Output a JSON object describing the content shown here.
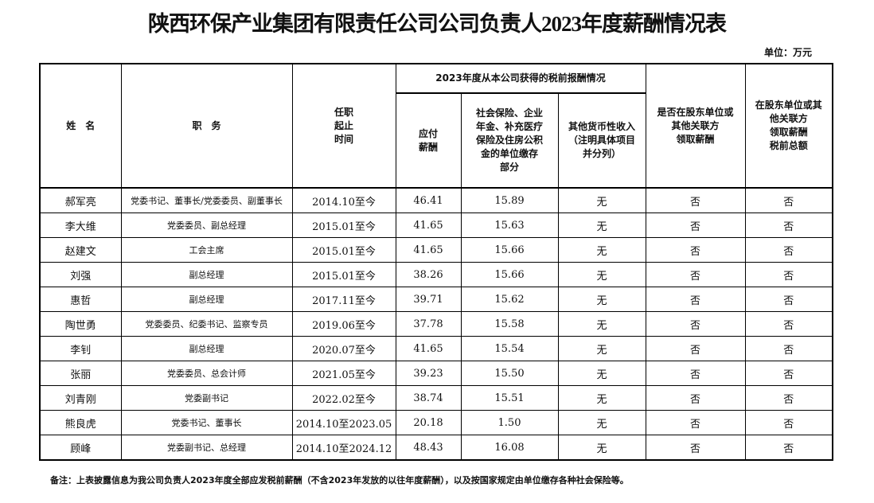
{
  "title": "陕西环保产业集团有限责任公司公司负责人2023年度薪酬情况表",
  "unit": "单位：万元",
  "headers": {
    "name": "姓　名",
    "position": "职　务",
    "term": "任职\n起止\n时间",
    "group": "2023年度从本公司获得的税前报酬情况",
    "salary": "应付\n薪酬",
    "insurance": "社会保险、企业\n年金、补充医疗\n保险及住房公积\n金的单位缴存\n部分",
    "other": "其他货币性收入\n（注明具体项目\n并分列）",
    "related": "是否在股东单位或\n其他关联方\n领取薪酬",
    "related_total": "在股东单位或其\n他关联方\n领取薪酬\n税前总额"
  },
  "rows": [
    {
      "name": "郝军亮",
      "position": "党委书记、董事长/党委委员、副董事长",
      "term": "2014.10至今",
      "salary": "46.41",
      "insurance": "15.89",
      "other": "无",
      "related": "否",
      "related_total": "否"
    },
    {
      "name": "李大维",
      "position": "党委委员、副总经理",
      "term": "2015.01至今",
      "salary": "41.65",
      "insurance": "15.63",
      "other": "无",
      "related": "否",
      "related_total": "否"
    },
    {
      "name": "赵建文",
      "position": "工会主席",
      "term": "2015.01至今",
      "salary": "41.65",
      "insurance": "15.66",
      "other": "无",
      "related": "否",
      "related_total": "否"
    },
    {
      "name": "刘强",
      "position": "副总经理",
      "term": "2015.01至今",
      "salary": "38.26",
      "insurance": "15.66",
      "other": "无",
      "related": "否",
      "related_total": "否"
    },
    {
      "name": "惠哲",
      "position": "副总经理",
      "term": "2017.11至今",
      "salary": "39.71",
      "insurance": "15.62",
      "other": "无",
      "related": "否",
      "related_total": "否"
    },
    {
      "name": "陶世勇",
      "position": "党委委员、纪委书记、监察专员",
      "term": "2019.06至今",
      "salary": "37.78",
      "insurance": "15.58",
      "other": "无",
      "related": "否",
      "related_total": "否"
    },
    {
      "name": "李钊",
      "position": "副总经理",
      "term": "2020.07至今",
      "salary": "41.65",
      "insurance": "15.54",
      "other": "无",
      "related": "否",
      "related_total": "否"
    },
    {
      "name": "张丽",
      "position": "党委委员、总会计师",
      "term": "2021.05至今",
      "salary": "39.23",
      "insurance": "15.50",
      "other": "无",
      "related": "否",
      "related_total": "否"
    },
    {
      "name": "刘青刚",
      "position": "党委副书记",
      "term": "2022.02至今",
      "salary": "38.74",
      "insurance": "15.51",
      "other": "无",
      "related": "否",
      "related_total": "否"
    },
    {
      "name": "熊良虎",
      "position": "党委书记、董事长",
      "term": "2014.10至2023.05",
      "salary": "20.18",
      "insurance": "1.50",
      "other": "无",
      "related": "否",
      "related_total": "否"
    },
    {
      "name": "顾峰",
      "position": "党委副书记、总经理",
      "term": "2014.10至2024.12",
      "salary": "48.43",
      "insurance": "16.08",
      "other": "无",
      "related": "否",
      "related_total": "否"
    }
  ],
  "note": "备注：上表披露信息为我公司负责人2023年度全部应发税前薪酬（不含2023年发放的以往年度薪酬），以及按国家规定由单位缴存各种社会保险等。"
}
